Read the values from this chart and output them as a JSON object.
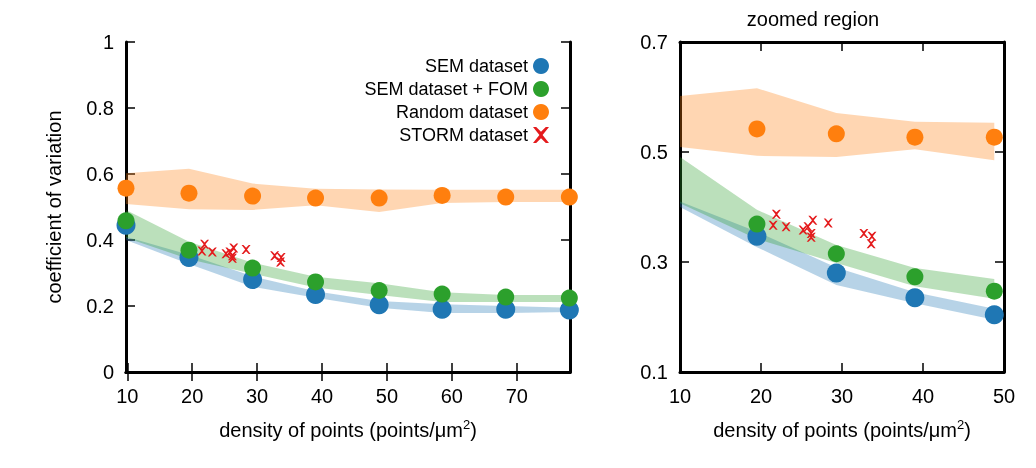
{
  "chart_data": [
    {
      "type": "scatter",
      "xlabel": "density of points (points/μm$^{2}$)",
      "ylabel": "coefficient of variation",
      "xlim": [
        9.8,
        78.2
      ],
      "xticks": [
        10,
        20,
        30,
        40,
        50,
        60,
        70
      ],
      "ylim": [
        0,
        1
      ],
      "yticks": [
        0,
        0.2,
        0.4,
        0.6,
        0.8,
        1
      ],
      "legend": "top right",
      "marker": "circle",
      "series": [
        {
          "name": "SEM dataset",
          "color": "#1f77b4",
          "x": [
            9.8,
            19.5,
            29.3,
            39,
            48.8,
            58.5,
            68.3,
            78.1
          ],
          "values": [
            0.445,
            0.347,
            0.28,
            0.235,
            0.204,
            0.19,
            0.19,
            0.188
          ],
          "lower": [
            0.4,
            0.327,
            0.258,
            0.225,
            0.195,
            0.179,
            0.179,
            0.182
          ],
          "upper": [
            0.41,
            0.355,
            0.29,
            0.245,
            0.215,
            0.205,
            0.2,
            0.195
          ]
        },
        {
          "name": "SEM dataset + FOM",
          "color": "#2ca02c",
          "x": [
            9.8,
            19.5,
            29.3,
            39,
            48.8,
            58.5,
            68.3,
            78.1
          ],
          "values": [
            0.458,
            0.369,
            0.315,
            0.273,
            0.247,
            0.236,
            0.227,
            0.224
          ],
          "lower": [
            0.407,
            0.342,
            0.298,
            0.256,
            0.233,
            0.212,
            0.212,
            0.212
          ],
          "upper": [
            0.491,
            0.395,
            0.331,
            0.289,
            0.269,
            0.242,
            0.233,
            0.233
          ]
        },
        {
          "name": "Random dataset",
          "color": "#ff7f0e",
          "x": [
            9.8,
            19.5,
            29.3,
            39,
            48.8,
            58.5,
            68.3,
            78.1
          ],
          "values": [
            0.557,
            0.542,
            0.533,
            0.527,
            0.527,
            0.535,
            0.53,
            0.53
          ],
          "lower": [
            0.509,
            0.493,
            0.491,
            0.505,
            0.485,
            0.512,
            0.515,
            0.515
          ],
          "upper": [
            0.602,
            0.616,
            0.571,
            0.555,
            0.553,
            0.552,
            0.552,
            0.552
          ]
        },
        {
          "name": "STORM dataset",
          "color": "#e41a1c",
          "marker": "cross",
          "x": [
            21.9,
            21.5,
            23.1,
            25.2,
            25.8,
            26.4,
            26.2,
            26.2,
            28.3,
            32.7,
            33.7,
            33.6
          ],
          "values": [
            0.387,
            0.367,
            0.364,
            0.358,
            0.364,
            0.376,
            0.352,
            0.345,
            0.371,
            0.352,
            0.347,
            0.333
          ]
        }
      ]
    },
    {
      "type": "scatter",
      "title": "zoomed region",
      "xlabel": "density of points (points/μm$^{2}$)",
      "xlim": [
        10,
        50
      ],
      "xticks": [
        10,
        20,
        30,
        40,
        50
      ],
      "ylim": [
        0.1,
        0.7
      ],
      "yticks": [
        0.1,
        0.3,
        0.5,
        0.7
      ],
      "marker": "circle",
      "series": [
        {
          "color": "#1f77b4",
          "x": [
            10,
            19.5,
            29.3,
            39,
            48.8
          ],
          "values": [
            null,
            0.347,
            0.28,
            0.235,
            0.204
          ],
          "lower": [
            0.4,
            0.327,
            0.258,
            0.225,
            0.195
          ],
          "upper": [
            0.41,
            0.355,
            0.29,
            0.245,
            0.215
          ]
        },
        {
          "color": "#2ca02c",
          "x": [
            10,
            19.5,
            29.3,
            39,
            48.8
          ],
          "values": [
            null,
            0.369,
            0.315,
            0.273,
            0.247
          ],
          "lower": [
            0.407,
            0.342,
            0.298,
            0.256,
            0.233
          ],
          "upper": [
            0.491,
            0.395,
            0.331,
            0.289,
            0.269
          ]
        },
        {
          "color": "#ff7f0e",
          "x": [
            10,
            19.5,
            29.3,
            39,
            48.8
          ],
          "values": [
            null,
            0.542,
            0.533,
            0.527,
            0.527
          ],
          "lower": [
            0.509,
            0.493,
            0.491,
            0.505,
            0.485
          ],
          "upper": [
            0.602,
            0.616,
            0.571,
            0.555,
            0.553
          ]
        },
        {
          "color": "#e41a1c",
          "marker": "cross",
          "x": [
            21.9,
            21.5,
            23.1,
            25.2,
            25.8,
            26.4,
            26.2,
            26.2,
            28.3,
            32.7,
            33.7,
            33.6
          ],
          "values": [
            0.387,
            0.367,
            0.364,
            0.358,
            0.364,
            0.376,
            0.352,
            0.345,
            0.371,
            0.352,
            0.347,
            0.333
          ]
        }
      ]
    }
  ]
}
